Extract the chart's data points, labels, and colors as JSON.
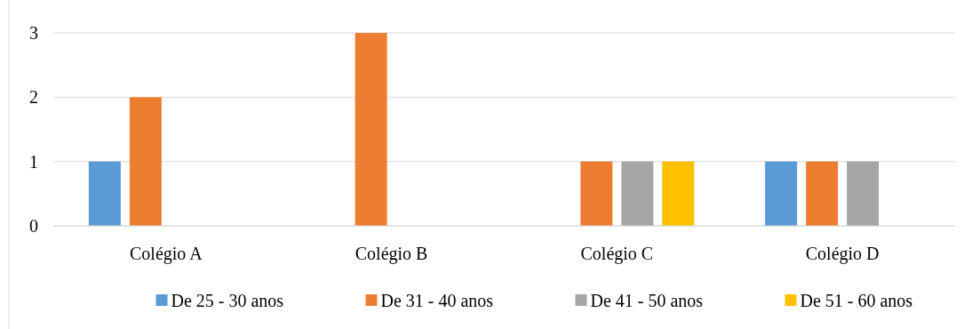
{
  "chart_data": {
    "type": "bar",
    "categories": [
      "Colégio A",
      "Colégio B",
      "Colégio C",
      "Colégio D"
    ],
    "series": [
      {
        "name": "De 25 - 30 anos",
        "color": "#5b9bd5",
        "values": [
          1,
          0,
          0,
          1
        ]
      },
      {
        "name": "De 31 - 40 anos",
        "color": "#ed7d31",
        "values": [
          2,
          3,
          1,
          1
        ]
      },
      {
        "name": "De 41 - 50 anos",
        "color": "#a5a5a5",
        "values": [
          0,
          0,
          1,
          1
        ]
      },
      {
        "name": "De 51 - 60 anos",
        "color": "#ffc000",
        "values": [
          0,
          0,
          1,
          0
        ]
      }
    ],
    "ylim": [
      0,
      3
    ],
    "yticks": [
      0,
      1,
      2,
      3
    ],
    "grid": "y",
    "legend": "bottom"
  }
}
